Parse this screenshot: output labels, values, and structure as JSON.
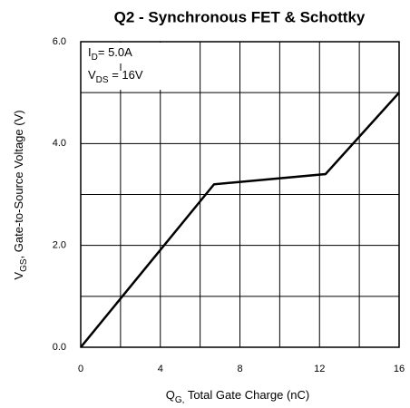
{
  "chart_data": {
    "type": "line",
    "title": "Q2 - Synchronous FET & Schottky",
    "x_label": {
      "main": "Q",
      "sub": "G,",
      "rest": " Total Gate Charge (nC)"
    },
    "y_label": {
      "main": "V",
      "sub": "GS",
      "rest": ",  Gate-to-Source Voltage (V)"
    },
    "annotations": [
      {
        "main": "I",
        "sub": "D",
        "rest": "= 5.0A"
      },
      {
        "main": "V",
        "sub": "DS",
        "rest": " = 16V"
      }
    ],
    "x": [
      0,
      6.7,
      12.3,
      16
    ],
    "values": [
      0,
      3.2,
      3.4,
      5.0
    ],
    "color": "#000000",
    "xlim": [
      0,
      16
    ],
    "ylim": [
      0,
      6
    ],
    "xticks": [
      0,
      4,
      8,
      12,
      16
    ],
    "yticks": [
      {
        "value": 0,
        "label": "0.0"
      },
      {
        "value": 2,
        "label": "2.0"
      },
      {
        "value": 4,
        "label": "4.0"
      },
      {
        "value": 6,
        "label": "6.0"
      }
    ],
    "xminor": [
      2,
      6,
      10,
      14
    ],
    "yminor": [
      1,
      3,
      5
    ],
    "grid": true
  }
}
